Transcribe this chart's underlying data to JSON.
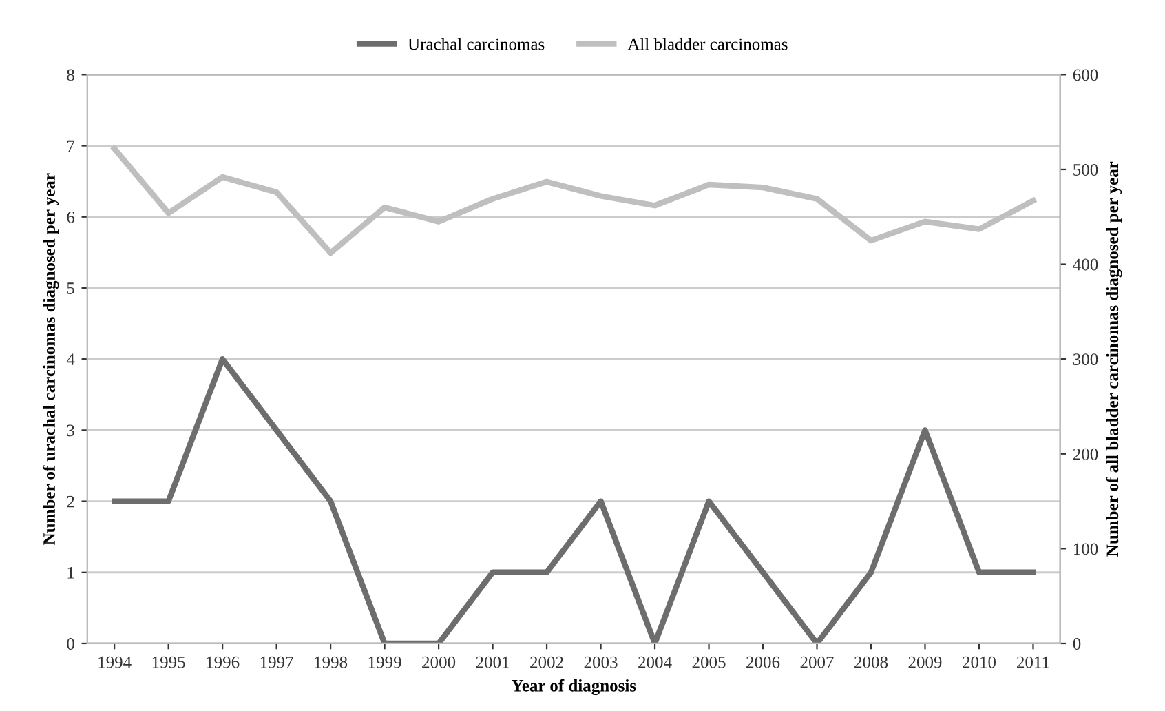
{
  "chart_data": {
    "type": "line",
    "xlabel": "Year of diagnosis",
    "ylabel": "Number of urachal carcinomas diagnosed per year",
    "y2label": "Number of all bladder carcinomas diagnosed per year",
    "categories": [
      "1994",
      "1995",
      "1996",
      "1997",
      "1998",
      "1999",
      "2000",
      "2001",
      "2002",
      "2003",
      "2004",
      "2005",
      "2006",
      "2007",
      "2008",
      "2009",
      "2010",
      "2011"
    ],
    "series": [
      {
        "name": "Urachal carcinomas",
        "color": "#6d6d6d",
        "values": [
          2,
          2,
          4,
          3,
          2,
          0,
          0,
          1,
          1,
          2,
          0,
          2,
          1,
          0,
          1,
          3,
          1,
          1
        ]
      },
      {
        "name": "All bladder carcinomas",
        "color": "#bfbfbf",
        "axis": "y2",
        "values": [
          522,
          454,
          492,
          476,
          412,
          460,
          445,
          469,
          487,
          472,
          462,
          484,
          481,
          469,
          425,
          445,
          437,
          467
        ]
      }
    ],
    "ylim": [
      0,
      8
    ],
    "yticks": [
      0,
      1,
      2,
      3,
      4,
      5,
      6,
      7,
      8
    ],
    "y2lim": [
      0,
      600
    ],
    "y2ticks": [
      0,
      100,
      200,
      300,
      400,
      500,
      600
    ],
    "grid": "y",
    "legend": "top",
    "marker": "none",
    "line_style": "solid"
  }
}
